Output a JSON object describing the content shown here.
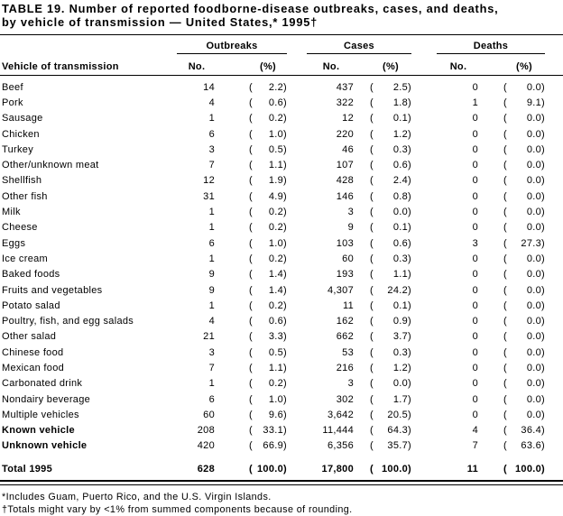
{
  "title": {
    "line1": "TABLE 19. Number of reported foodborne-disease outbreaks, cases, and deaths,",
    "line2": "by vehicle of transmission — United States,* 1995†"
  },
  "table": {
    "row_header": "Vehicle of transmission",
    "groups": [
      {
        "label": "Outbreaks"
      },
      {
        "label": "Cases"
      },
      {
        "label": "Deaths"
      }
    ],
    "subheaders": {
      "no": "No.",
      "pct": "(%)"
    },
    "rows": [
      {
        "label": "Beef",
        "ob_no": "14",
        "ob_pct": "2.2",
        "ca_no": "437",
        "ca_pct": "2.5",
        "de_no": "0",
        "de_pct": "0.0"
      },
      {
        "label": "Pork",
        "ob_no": "4",
        "ob_pct": "0.6",
        "ca_no": "322",
        "ca_pct": "1.8",
        "de_no": "1",
        "de_pct": "9.1"
      },
      {
        "label": "Sausage",
        "ob_no": "1",
        "ob_pct": "0.2",
        "ca_no": "12",
        "ca_pct": "0.1",
        "de_no": "0",
        "de_pct": "0.0"
      },
      {
        "label": "Chicken",
        "ob_no": "6",
        "ob_pct": "1.0",
        "ca_no": "220",
        "ca_pct": "1.2",
        "de_no": "0",
        "de_pct": "0.0"
      },
      {
        "label": "Turkey",
        "ob_no": "3",
        "ob_pct": "0.5",
        "ca_no": "46",
        "ca_pct": "0.3",
        "de_no": "0",
        "de_pct": "0.0"
      },
      {
        "label": "Other/unknown meat",
        "ob_no": "7",
        "ob_pct": "1.1",
        "ca_no": "107",
        "ca_pct": "0.6",
        "de_no": "0",
        "de_pct": "0.0"
      },
      {
        "label": "Shellfish",
        "ob_no": "12",
        "ob_pct": "1.9",
        "ca_no": "428",
        "ca_pct": "2.4",
        "de_no": "0",
        "de_pct": "0.0"
      },
      {
        "label": "Other fish",
        "ob_no": "31",
        "ob_pct": "4.9",
        "ca_no": "146",
        "ca_pct": "0.8",
        "de_no": "0",
        "de_pct": "0.0"
      },
      {
        "label": "Milk",
        "ob_no": "1",
        "ob_pct": "0.2",
        "ca_no": "3",
        "ca_pct": "0.0",
        "de_no": "0",
        "de_pct": "0.0"
      },
      {
        "label": "Cheese",
        "ob_no": "1",
        "ob_pct": "0.2",
        "ca_no": "9",
        "ca_pct": "0.1",
        "de_no": "0",
        "de_pct": "0.0"
      },
      {
        "label": "Eggs",
        "ob_no": "6",
        "ob_pct": "1.0",
        "ca_no": "103",
        "ca_pct": "0.6",
        "de_no": "3",
        "de_pct": "27.3"
      },
      {
        "label": "Ice cream",
        "ob_no": "1",
        "ob_pct": "0.2",
        "ca_no": "60",
        "ca_pct": "0.3",
        "de_no": "0",
        "de_pct": "0.0"
      },
      {
        "label": "Baked foods",
        "ob_no": "9",
        "ob_pct": "1.4",
        "ca_no": "193",
        "ca_pct": "1.1",
        "de_no": "0",
        "de_pct": "0.0"
      },
      {
        "label": "Fruits and vegetables",
        "ob_no": "9",
        "ob_pct": "1.4",
        "ca_no": "4,307",
        "ca_pct": "24.2",
        "de_no": "0",
        "de_pct": "0.0"
      },
      {
        "label": "Potato salad",
        "ob_no": "1",
        "ob_pct": "0.2",
        "ca_no": "11",
        "ca_pct": "0.1",
        "de_no": "0",
        "de_pct": "0.0"
      },
      {
        "label": "Poultry, fish, and egg salads",
        "ob_no": "4",
        "ob_pct": "0.6",
        "ca_no": "162",
        "ca_pct": "0.9",
        "de_no": "0",
        "de_pct": "0.0"
      },
      {
        "label": "Other salad",
        "ob_no": "21",
        "ob_pct": "3.3",
        "ca_no": "662",
        "ca_pct": "3.7",
        "de_no": "0",
        "de_pct": "0.0"
      },
      {
        "label": "Chinese food",
        "ob_no": "3",
        "ob_pct": "0.5",
        "ca_no": "53",
        "ca_pct": "0.3",
        "de_no": "0",
        "de_pct": "0.0"
      },
      {
        "label": "Mexican food",
        "ob_no": "7",
        "ob_pct": "1.1",
        "ca_no": "216",
        "ca_pct": "1.2",
        "de_no": "0",
        "de_pct": "0.0"
      },
      {
        "label": "Carbonated drink",
        "ob_no": "1",
        "ob_pct": "0.2",
        "ca_no": "3",
        "ca_pct": "0.0",
        "de_no": "0",
        "de_pct": "0.0"
      },
      {
        "label": "Nondairy beverage",
        "ob_no": "6",
        "ob_pct": "1.0",
        "ca_no": "302",
        "ca_pct": "1.7",
        "de_no": "0",
        "de_pct": "0.0"
      },
      {
        "label": "Multiple vehicles",
        "ob_no": "60",
        "ob_pct": "9.6",
        "ca_no": "3,642",
        "ca_pct": "20.5",
        "de_no": "0",
        "de_pct": "0.0"
      },
      {
        "label": "Known vehicle",
        "bold": true,
        "ob_no": "208",
        "ob_pct": "33.1",
        "ca_no": "11,444",
        "ca_pct": "64.3",
        "de_no": "4",
        "de_pct": "36.4"
      },
      {
        "label": "Unknown vehicle",
        "bold": true,
        "ob_no": "420",
        "ob_pct": "66.9",
        "ca_no": "6,356",
        "ca_pct": "35.7",
        "de_no": "7",
        "de_pct": "63.6"
      },
      {
        "label": "Total 1995",
        "bold": true,
        "total": true,
        "ob_no": "628",
        "ob_pct": "100.0",
        "ca_no": "17,800",
        "ca_pct": "100.0",
        "de_no": "11",
        "de_pct": "100.0"
      }
    ]
  },
  "footnotes": [
    "*Includes Guam, Puerto Rico, and the U.S. Virgin Islands.",
    "†Totals might vary by <1% from summed components because of rounding."
  ]
}
